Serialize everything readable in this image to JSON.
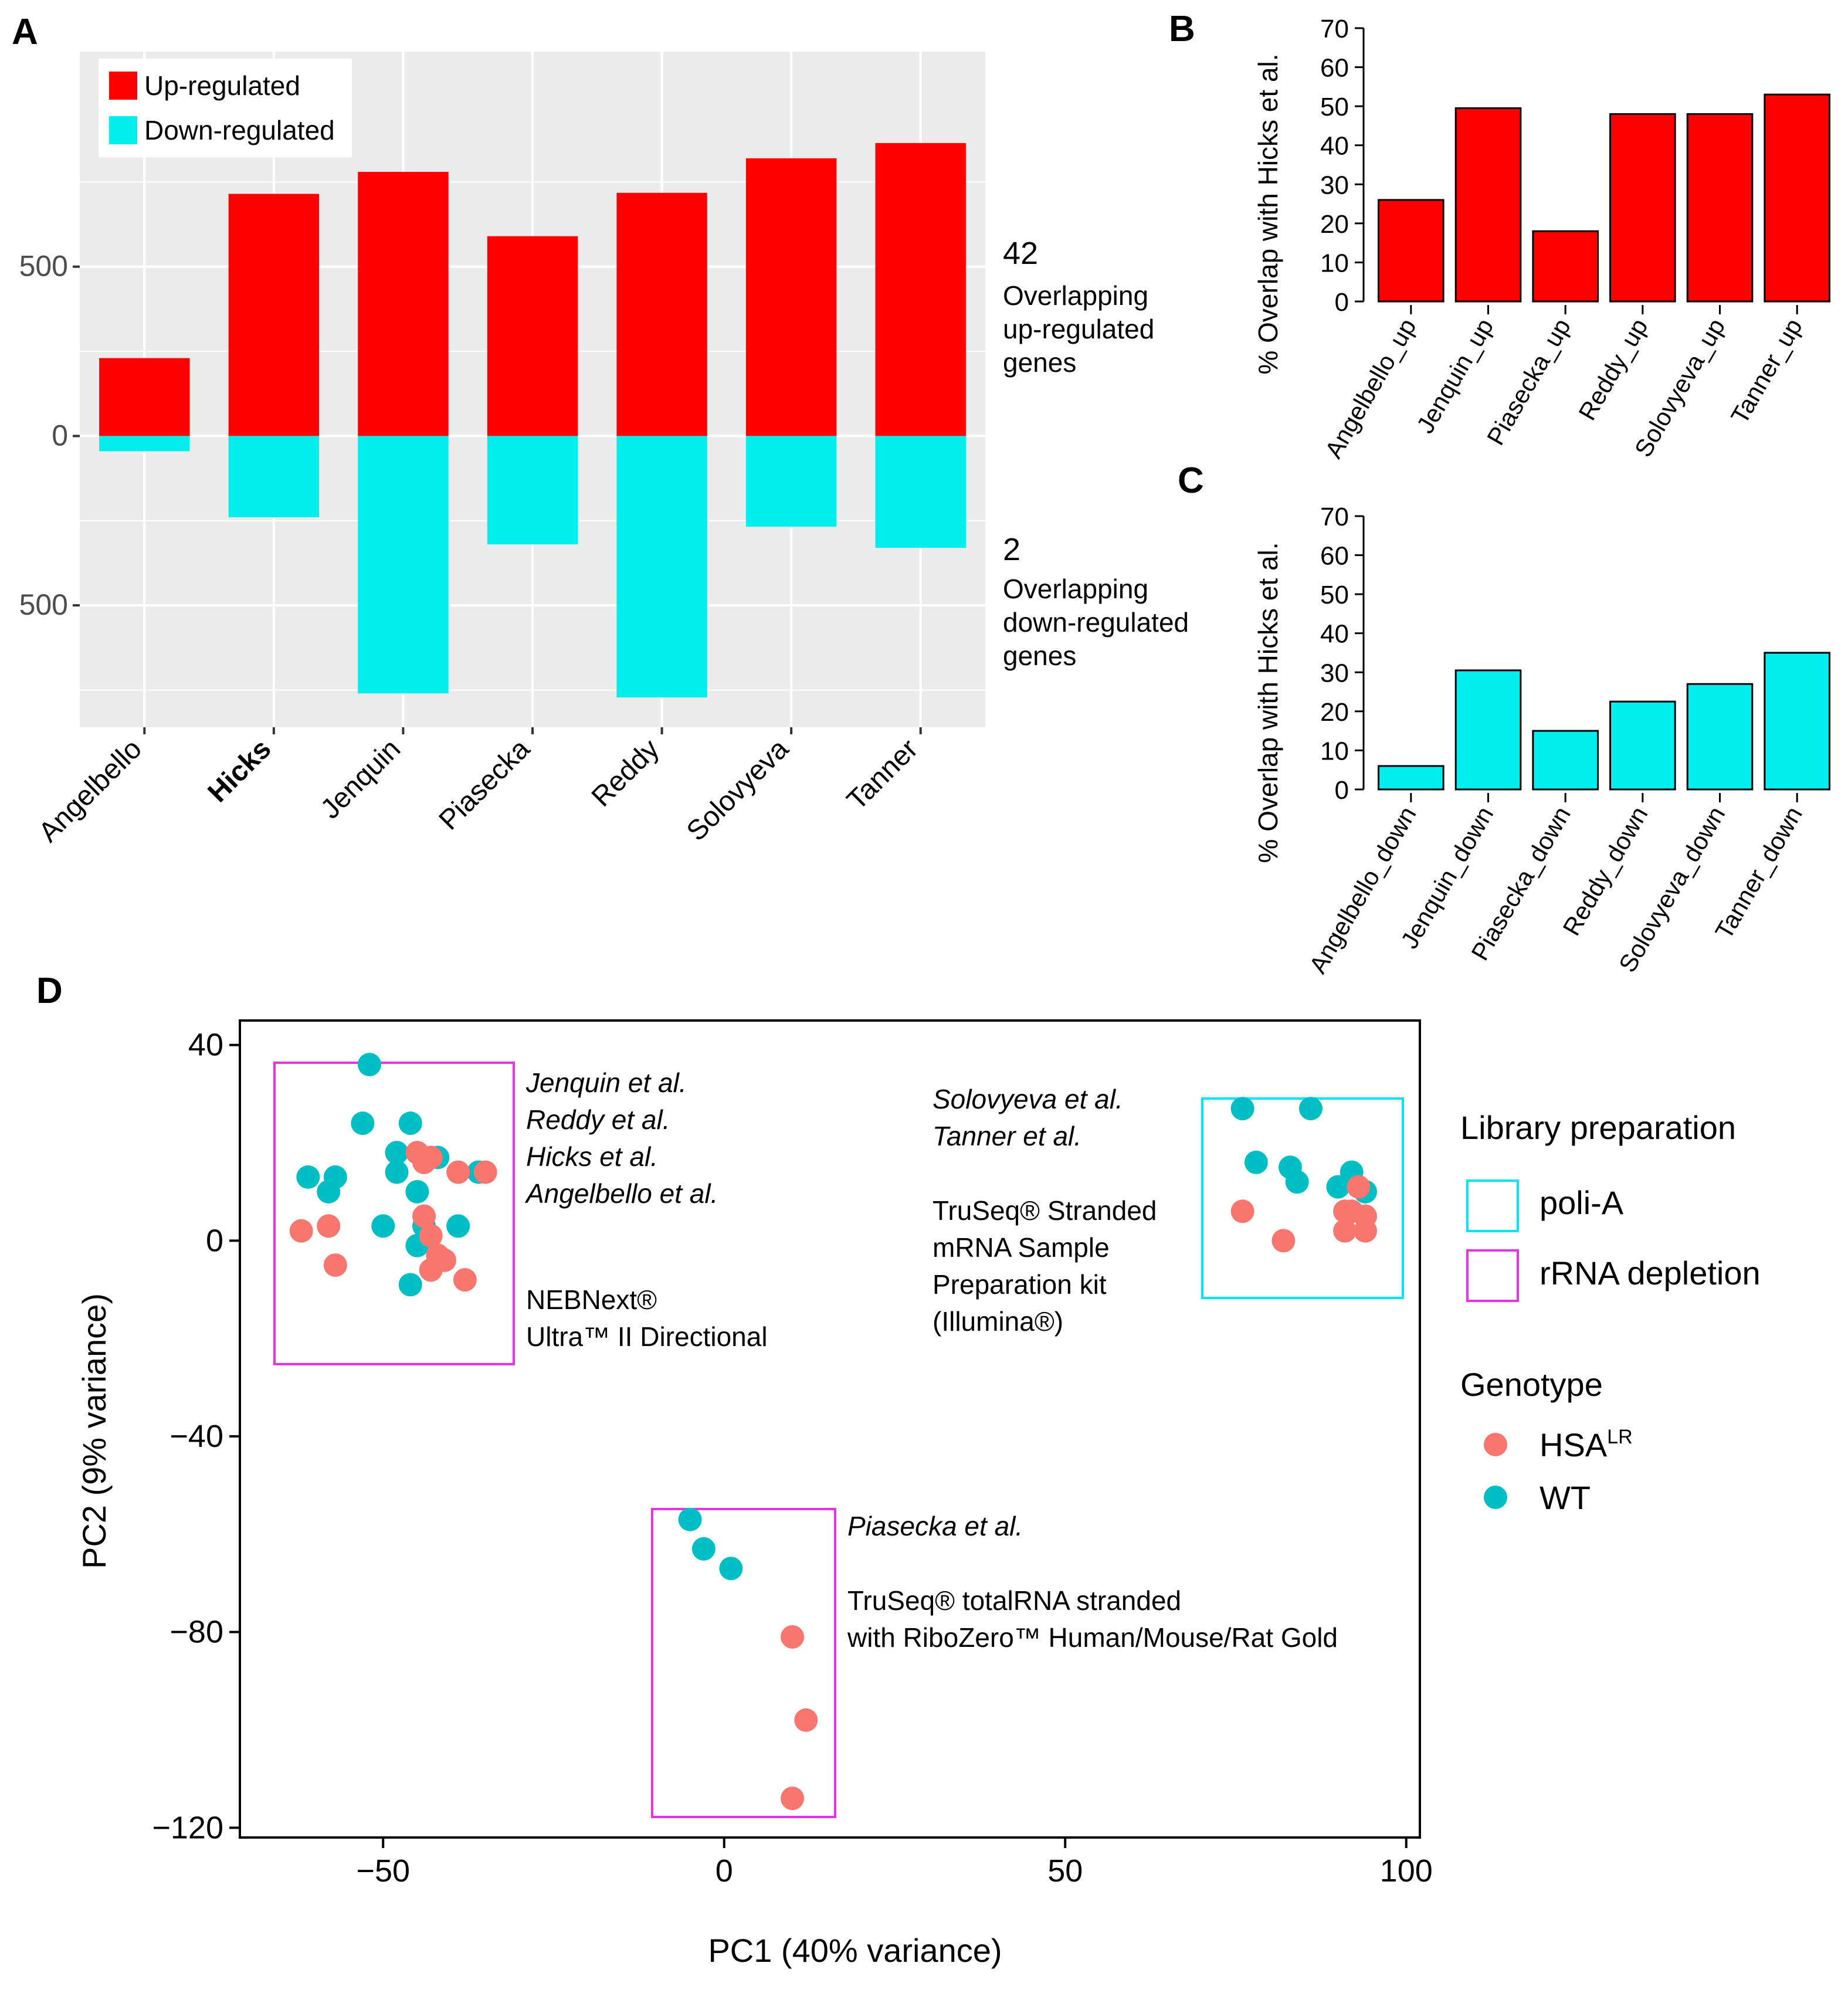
{
  "colors": {
    "up": "#ff0000",
    "down": "#00eeee",
    "hsa": "#f8766d",
    "wt": "#00bfc4",
    "polyA": "#00e5ff",
    "rrna": "#e633e6",
    "panel_bg": "#ebebeb"
  },
  "labels": {
    "A": "A",
    "B": "B",
    "C": "C",
    "D": "D"
  },
  "chart_data": [
    {
      "panel": "A",
      "type": "bar",
      "categories": [
        "Angelbello",
        "Hicks",
        "Jenquin",
        "Piasecka",
        "Reddy",
        "Solovyeva",
        "Tanner"
      ],
      "bold_category": "Hicks",
      "series": [
        {
          "name": "Up-regulated",
          "values": [
            230,
            715,
            780,
            590,
            718,
            820,
            865
          ]
        },
        {
          "name": "Down-regulated",
          "values": [
            -45,
            -240,
            -760,
            -320,
            -772,
            -268,
            -330
          ]
        }
      ],
      "yticks": [
        500,
        0,
        -500
      ],
      "ytick_labels": [
        "500",
        "0",
        "500"
      ],
      "ylim": [
        -860,
        1135
      ],
      "legend": [
        "Up-regulated",
        "Down-regulated"
      ],
      "annotations": [
        {
          "number": "42",
          "lines": [
            "Overlapping",
            "up-regulated",
            "genes"
          ]
        },
        {
          "number": "2",
          "lines": [
            "Overlapping",
            "down-regulated",
            "genes"
          ]
        }
      ]
    },
    {
      "panel": "B",
      "type": "bar",
      "categories": [
        "Angelbello_up",
        "Jenquin_up",
        "Piasecka_up",
        "Reddy_up",
        "Solovyeva_up",
        "Tanner_up"
      ],
      "values": [
        26,
        49.5,
        18,
        48,
        48,
        53
      ],
      "ylabel": "% Overlap with Hicks et al.",
      "yticks": [
        0,
        10,
        20,
        30,
        40,
        50,
        60,
        70
      ],
      "ylim": [
        0,
        70
      ]
    },
    {
      "panel": "C",
      "type": "bar",
      "categories": [
        "Angelbello_down",
        "Jenquin_down",
        "Piasecka_down",
        "Reddy_down",
        "Solovyeva_down",
        "Tanner_down"
      ],
      "values": [
        6,
        30.5,
        15,
        22.5,
        27,
        35
      ],
      "ylabel": "% Overlap with Hicks et al.",
      "yticks": [
        0,
        10,
        20,
        30,
        40,
        50,
        60,
        70
      ],
      "ylim": [
        0,
        70
      ]
    },
    {
      "panel": "D",
      "type": "scatter",
      "xlabel": "PC1 (40% variance)",
      "ylabel": "PC2 (9% variance)",
      "xlim": [
        -71,
        102
      ],
      "ylim": [
        -122,
        45
      ],
      "xticks": [
        -50,
        0,
        50,
        100
      ],
      "xtick_labels": [
        "−50",
        "0",
        "50",
        "100"
      ],
      "yticks": [
        40,
        0,
        -40,
        -80,
        -120
      ],
      "ytick_labels": [
        "40",
        "0",
        "−40",
        "−80",
        "−120"
      ],
      "points": [
        {
          "g": "WT",
          "x": -52,
          "y": 36
        },
        {
          "g": "WT",
          "x": -53,
          "y": 24
        },
        {
          "g": "WT",
          "x": -46,
          "y": 24
        },
        {
          "g": "WT",
          "x": -48,
          "y": 18
        },
        {
          "g": "WT",
          "x": -42,
          "y": 17
        },
        {
          "g": "WT",
          "x": -61,
          "y": 13
        },
        {
          "g": "WT",
          "x": -57,
          "y": 13
        },
        {
          "g": "WT",
          "x": -58,
          "y": 10
        },
        {
          "g": "WT",
          "x": -48,
          "y": 14
        },
        {
          "g": "WT",
          "x": -45,
          "y": 10
        },
        {
          "g": "WT",
          "x": -36,
          "y": 14
        },
        {
          "g": "WT",
          "x": -50,
          "y": 3
        },
        {
          "g": "WT",
          "x": -44,
          "y": 3
        },
        {
          "g": "WT",
          "x": -39,
          "y": 3
        },
        {
          "g": "WT",
          "x": -45,
          "y": -1
        },
        {
          "g": "WT",
          "x": -46,
          "y": -9
        },
        {
          "g": "HSA",
          "x": -45,
          "y": 18
        },
        {
          "g": "HSA",
          "x": -43,
          "y": 17
        },
        {
          "g": "HSA",
          "x": -44,
          "y": 16
        },
        {
          "g": "HSA",
          "x": -39,
          "y": 14
        },
        {
          "g": "HSA",
          "x": -35,
          "y": 14
        },
        {
          "g": "HSA",
          "x": -44,
          "y": 5
        },
        {
          "g": "HSA",
          "x": -58,
          "y": 3
        },
        {
          "g": "HSA",
          "x": -62,
          "y": 2
        },
        {
          "g": "HSA",
          "x": -43,
          "y": 1
        },
        {
          "g": "HSA",
          "x": -42,
          "y": -3
        },
        {
          "g": "HSA",
          "x": -41,
          "y": -4
        },
        {
          "g": "HSA",
          "x": -43,
          "y": -6
        },
        {
          "g": "HSA",
          "x": -57,
          "y": -5
        },
        {
          "g": "HSA",
          "x": -38,
          "y": -8
        },
        {
          "g": "WT",
          "x": 76,
          "y": 27
        },
        {
          "g": "WT",
          "x": 86,
          "y": 27
        },
        {
          "g": "WT",
          "x": 78,
          "y": 16
        },
        {
          "g": "WT",
          "x": 83,
          "y": 15
        },
        {
          "g": "WT",
          "x": 84,
          "y": 12
        },
        {
          "g": "WT",
          "x": 90,
          "y": 11
        },
        {
          "g": "WT",
          "x": 92,
          "y": 14
        },
        {
          "g": "WT",
          "x": 94,
          "y": 10
        },
        {
          "g": "HSA",
          "x": 76,
          "y": 6
        },
        {
          "g": "HSA",
          "x": 82,
          "y": 0
        },
        {
          "g": "HSA",
          "x": 93,
          "y": 11
        },
        {
          "g": "HSA",
          "x": 91,
          "y": 6
        },
        {
          "g": "HSA",
          "x": 92,
          "y": 6
        },
        {
          "g": "HSA",
          "x": 94,
          "y": 5
        },
        {
          "g": "HSA",
          "x": 91,
          "y": 2
        },
        {
          "g": "HSA",
          "x": 94,
          "y": 2
        },
        {
          "g": "WT",
          "x": -5,
          "y": -57
        },
        {
          "g": "WT",
          "x": -3,
          "y": -63
        },
        {
          "g": "WT",
          "x": 1,
          "y": -67
        },
        {
          "g": "HSA",
          "x": 10,
          "y": -81
        },
        {
          "g": "HSA",
          "x": 12,
          "y": -98
        },
        {
          "g": "HSA",
          "x": 10,
          "y": -114
        }
      ],
      "groups": [
        {
          "library": "rRNA depletion",
          "studies": [
            "Jenquin et al.",
            "Reddy et al.",
            "Hicks et al.",
            "Angelbello et al."
          ],
          "kit_lines": [
            "NEBNext®",
            "Ultra™ II Directional"
          ]
        },
        {
          "library": "poli-A",
          "studies": [
            "Solovyeva et al.",
            "Tanner et al."
          ],
          "kit_lines": [
            "TruSeq® Stranded",
            "mRNA Sample",
            "Preparation kit",
            "(Illumina®)"
          ]
        },
        {
          "library": "rRNA depletion",
          "studies": [
            "Piasecka et al."
          ],
          "kit_lines": [
            "TruSeq® totalRNA stranded",
            "with RiboZero™ Human/Mouse/Rat Gold"
          ]
        }
      ],
      "legend": {
        "library_title": "Library preparation",
        "library_items": [
          "poli-A",
          "rRNA depletion"
        ],
        "genotype_title": "Genotype",
        "genotype_items": [
          "HSALR",
          "WT"
        ]
      }
    }
  ]
}
